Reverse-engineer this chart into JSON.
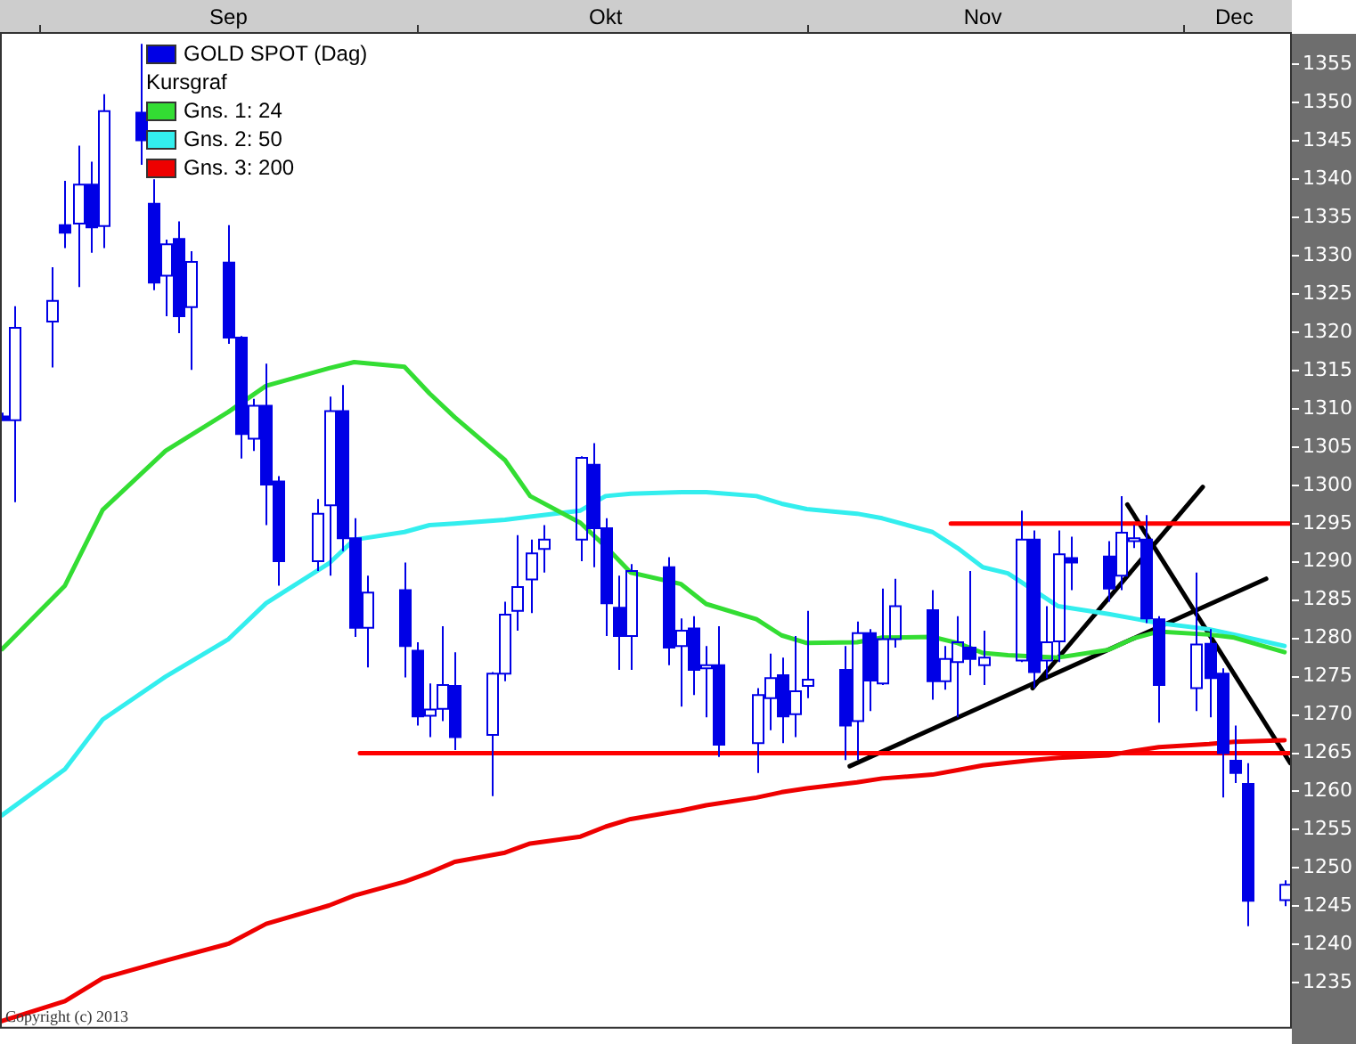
{
  "chart_data": {
    "type": "candlestick",
    "legend": "top left",
    "legend_title": "Kursgraf",
    "marker": "none",
    "x": [
      "2013-08-29",
      "2013-08-30",
      "2013-09-02",
      "2013-09-03",
      "2013-09-04",
      "2013-09-05",
      "2013-09-06",
      "2013-09-09",
      "2013-09-10",
      "2013-09-11",
      "2013-09-12",
      "2013-09-13",
      "2013-09-16",
      "2013-09-17",
      "2013-09-18",
      "2013-09-19",
      "2013-09-20",
      "2013-09-23",
      "2013-09-24",
      "2013-09-25",
      "2013-09-26",
      "2013-09-27",
      "2013-09-30",
      "2013-10-01",
      "2013-10-02",
      "2013-10-03",
      "2013-10-04",
      "2013-10-07",
      "2013-10-08",
      "2013-10-09",
      "2013-10-10",
      "2013-10-11",
      "2013-10-14",
      "2013-10-15",
      "2013-10-16",
      "2013-10-17",
      "2013-10-18",
      "2013-10-21",
      "2013-10-22",
      "2013-10-23",
      "2013-10-24",
      "2013-10-25",
      "2013-10-28",
      "2013-10-29",
      "2013-10-30",
      "2013-10-31",
      "2013-11-01",
      "2013-11-04",
      "2013-11-05",
      "2013-11-06",
      "2013-11-07",
      "2013-11-08",
      "2013-11-11",
      "2013-11-12",
      "2013-11-13",
      "2013-11-14",
      "2013-11-15",
      "2013-11-18",
      "2013-11-19",
      "2013-11-20",
      "2013-11-21",
      "2013-11-22",
      "2013-11-25",
      "2013-11-26",
      "2013-11-27",
      "2013-11-28",
      "2013-11-29",
      "2013-12-02",
      "2013-12-03",
      "2013-12-04",
      "2013-12-05",
      "2013-12-06",
      "2013-12-09"
    ],
    "xlim": [
      "2013-08-28T20:00",
      "2013-12-09T14:00"
    ],
    "xticks": [
      {
        "value": "2013-09-01",
        "label": null
      },
      {
        "value": "2013-09-16",
        "label": "Sep"
      },
      {
        "value": "2013-10-01",
        "label": null
      },
      {
        "value": "2013-10-16",
        "label": "Okt"
      },
      {
        "value": "2013-11-01",
        "label": null
      },
      {
        "value": "2013-11-15",
        "label": "Nov"
      },
      {
        "value": "2013-12-01",
        "label": null
      },
      {
        "value": "2013-12-05",
        "label": "Dec"
      }
    ],
    "ylim": [
      1229,
      1359
    ],
    "yticks": [
      1235,
      1240,
      1245,
      1250,
      1255,
      1260,
      1265,
      1270,
      1275,
      1280,
      1285,
      1290,
      1295,
      1300,
      1305,
      1310,
      1315,
      1320,
      1325,
      1330,
      1335,
      1340,
      1345,
      1350,
      1355
    ],
    "annotations": [
      "Copyright (c) 2013"
    ],
    "series": [
      {
        "name": "GOLD SPOT (Dag)",
        "color": "#0000e6",
        "ohlc": [
          [
            1309,
            1309.5,
            1308.5,
            1308.5
          ],
          [
            1308.5,
            1323.4,
            1297.8,
            1320.6
          ],
          [
            1321.4,
            1328.5,
            1315.4,
            1324.1
          ],
          [
            1334.0,
            1339.8,
            1331.0,
            1333.0
          ],
          [
            1334.2,
            1344.4,
            1325.9,
            1339.3
          ],
          [
            1339.3,
            1342.3,
            1330.4,
            1333.7
          ],
          [
            1333.9,
            1351.1,
            1331.0,
            1348.9
          ],
          [
            1348.7,
            1357.7,
            1341.9,
            1345.1
          ],
          [
            1336.8,
            1340.0,
            1325.5,
            1326.5
          ],
          [
            1327.4,
            1332.1,
            1322.1,
            1331.5
          ],
          [
            1332.2,
            1334.5,
            1319.9,
            1322.1
          ],
          [
            1323.3,
            1330.6,
            1315.1,
            1329.2
          ],
          [
            1329.1,
            1334.0,
            1318.5,
            1319.3
          ],
          [
            1319.3,
            1319.5,
            1303.5,
            1306.7
          ],
          [
            1306.1,
            1311.3,
            1304.5,
            1310.4
          ],
          [
            1310.4,
            1315.9,
            1294.8,
            1300.1
          ],
          [
            1300.5,
            1301.2,
            1286.9,
            1290.1
          ],
          [
            1290.1,
            1298.2,
            1288.8,
            1296.3
          ],
          [
            1297.4,
            1311.6,
            1288.2,
            1309.7
          ],
          [
            1309.7,
            1313.1,
            1291.4,
            1293.1
          ],
          [
            1293.1,
            1295.7,
            1280.2,
            1281.4
          ],
          [
            1281.4,
            1288.2,
            1276.2,
            1286.0
          ],
          [
            1286.3,
            1289.9,
            1274.9,
            1279.0
          ],
          [
            1278.4,
            1279.5,
            1268.6,
            1269.8
          ],
          [
            1269.9,
            1274.1,
            1267.1,
            1270.7
          ],
          [
            1270.8,
            1281.6,
            1269.2,
            1273.9
          ],
          [
            1273.8,
            1278.2,
            1265.4,
            1267.1
          ],
          [
            1267.4,
            1275.6,
            1259.4,
            1275.4
          ],
          [
            1275.4,
            1284.8,
            1274.4,
            1283.1
          ],
          [
            1283.6,
            1293.5,
            1281.0,
            1286.7
          ],
          [
            1287.7,
            1292.9,
            1283.3,
            1291.1
          ],
          [
            1291.7,
            1294.8,
            1288.6,
            1292.9
          ],
          [
            1292.9,
            1303.8,
            1290.1,
            1303.6
          ],
          [
            1302.7,
            1305.5,
            1289.3,
            1294.4
          ],
          [
            1294.4,
            1295.7,
            1280.3,
            1284.6
          ],
          [
            1284.0,
            1288.2,
            1275.9,
            1280.3
          ],
          [
            1280.3,
            1289.7,
            1275.9,
            1288.8
          ],
          [
            1289.3,
            1290.6,
            1276.5,
            1278.8
          ],
          [
            1279.0,
            1282.6,
            1271.1,
            1281.0
          ],
          [
            1281.3,
            1282.9,
            1272.6,
            1275.9
          ],
          [
            1276.1,
            1279.0,
            1269.7,
            1276.5
          ],
          [
            1276.5,
            1281.6,
            1264.5,
            1266.1
          ],
          [
            1266.3,
            1273.5,
            1262.4,
            1272.6
          ],
          [
            1272.2,
            1278.0,
            1268.0,
            1274.8
          ],
          [
            1275.2,
            1277.5,
            1266.3,
            1269.8
          ],
          [
            1270.1,
            1280.3,
            1267.1,
            1273.1
          ],
          [
            1273.8,
            1283.6,
            1272.2,
            1274.6
          ],
          [
            1275.9,
            1279.0,
            1264.1,
            1268.6
          ],
          [
            1269.2,
            1282.2,
            1264.1,
            1280.7
          ],
          [
            1280.7,
            1281.2,
            1270.5,
            1274.5
          ],
          [
            1274.1,
            1286.5,
            1273.9,
            1279.9
          ],
          [
            1279.9,
            1287.8,
            1278.8,
            1284.2
          ],
          [
            1283.7,
            1286.3,
            1272.0,
            1274.4
          ],
          [
            1274.4,
            1279.0,
            1273.3,
            1277.3
          ],
          [
            1276.9,
            1282.9,
            1269.7,
            1279.5
          ],
          [
            1278.8,
            1288.8,
            1275.2,
            1277.3
          ],
          [
            1276.5,
            1281.0,
            1273.9,
            1277.5
          ],
          [
            1277.1,
            1296.7,
            1276.9,
            1292.9
          ],
          [
            1292.9,
            1294.1,
            1273.5,
            1275.6
          ],
          [
            1277.1,
            1284.2,
            1274.8,
            1279.5
          ],
          [
            1279.6,
            1294.1,
            1276.9,
            1291.0
          ],
          [
            1290.5,
            1293.3,
            1286.3,
            1289.9
          ],
          [
            1290.7,
            1292.7,
            1284.8,
            1286.5
          ],
          [
            1288.2,
            1298.6,
            1286.3,
            1293.8
          ],
          [
            1292.7,
            1294.8,
            1291.8,
            1293.1
          ],
          [
            1292.9,
            1296.1,
            1282.0,
            1282.6
          ],
          [
            1282.5,
            1282.9,
            1269.0,
            1273.9
          ],
          [
            1273.5,
            1288.6,
            1270.5,
            1279.2
          ],
          [
            1279.3,
            1281.2,
            1269.7,
            1274.8
          ],
          [
            1275.4,
            1276.1,
            1259.2,
            1265.0
          ],
          [
            1264.0,
            1268.6,
            1261.1,
            1262.4
          ],
          [
            1261.0,
            1263.7,
            1242.4,
            1245.7
          ],
          [
            1245.8,
            1248.4,
            1245.0,
            1247.8
          ]
        ]
      },
      {
        "type": "line",
        "name": "Gns. 1: 24",
        "color": "#33dd33",
        "x": [
          "2013-08-29",
          "2013-09-03",
          "2013-09-06",
          "2013-09-11",
          "2013-09-16",
          "2013-09-19",
          "2013-09-24",
          "2013-09-26",
          "2013-09-30",
          "2013-10-02",
          "2013-10-04",
          "2013-10-08",
          "2013-10-10",
          "2013-10-14",
          "2013-10-16",
          "2013-10-18",
          "2013-10-22",
          "2013-10-24",
          "2013-10-28",
          "2013-10-30",
          "2013-11-01",
          "2013-11-05",
          "2013-11-07",
          "2013-11-11",
          "2013-11-13",
          "2013-11-15",
          "2013-11-17",
          "2013-11-21",
          "2013-11-25",
          "2013-11-27",
          "2013-11-29",
          "2013-12-03",
          "2013-12-05",
          "2013-12-09"
        ],
        "values": [
          1278.6,
          1286.9,
          1296.8,
          1304.5,
          1309.6,
          1313.0,
          1315.3,
          1316.1,
          1315.5,
          1312.0,
          1308.9,
          1303.3,
          1298.6,
          1295.1,
          1292.0,
          1288.6,
          1287.1,
          1284.5,
          1282.5,
          1280.4,
          1279.4,
          1279.5,
          1280.1,
          1280.2,
          1279.4,
          1278.1,
          1277.8,
          1277.5,
          1278.5,
          1280.0,
          1280.9,
          1280.5,
          1280.1,
          1278.2
        ]
      },
      {
        "type": "line",
        "name": "Gns. 2: 50",
        "color": "#33eeee",
        "x": [
          "2013-08-29",
          "2013-09-03",
          "2013-09-06",
          "2013-09-11",
          "2013-09-16",
          "2013-09-19",
          "2013-09-24",
          "2013-09-26",
          "2013-09-30",
          "2013-10-02",
          "2013-10-04",
          "2013-10-08",
          "2013-10-10",
          "2013-10-14",
          "2013-10-16",
          "2013-10-18",
          "2013-10-22",
          "2013-10-24",
          "2013-10-28",
          "2013-10-30",
          "2013-11-01",
          "2013-11-05",
          "2013-11-07",
          "2013-11-11",
          "2013-11-13",
          "2013-11-15",
          "2013-11-17",
          "2013-11-21",
          "2013-11-25",
          "2013-11-27",
          "2013-11-29",
          "2013-12-03",
          "2013-12-05",
          "2013-12-09"
        ],
        "values": [
          1256.9,
          1262.9,
          1269.4,
          1275.0,
          1279.9,
          1284.6,
          1289.8,
          1292.9,
          1293.9,
          1294.8,
          1295.0,
          1295.5,
          1295.9,
          1296.7,
          1298.6,
          1298.9,
          1299.1,
          1299.1,
          1298.6,
          1297.6,
          1296.9,
          1296.3,
          1295.7,
          1293.9,
          1291.8,
          1289.3,
          1288.5,
          1284.2,
          1283.2,
          1282.6,
          1282.0,
          1281.2,
          1280.5,
          1279.0
        ]
      },
      {
        "type": "line",
        "name": "Gns. 3: 200",
        "color": "#ee0000",
        "x": [
          "2013-08-29",
          "2013-09-03",
          "2013-09-06",
          "2013-09-11",
          "2013-09-16",
          "2013-09-19",
          "2013-09-24",
          "2013-09-26",
          "2013-09-30",
          "2013-10-02",
          "2013-10-04",
          "2013-10-08",
          "2013-10-10",
          "2013-10-14",
          "2013-10-16",
          "2013-10-18",
          "2013-10-22",
          "2013-10-24",
          "2013-10-28",
          "2013-10-30",
          "2013-11-01",
          "2013-11-05",
          "2013-11-07",
          "2013-11-11",
          "2013-11-13",
          "2013-11-15",
          "2013-11-19",
          "2013-11-21",
          "2013-11-25",
          "2013-11-27",
          "2013-11-29",
          "2013-12-03",
          "2013-12-05",
          "2013-12-09"
        ],
        "values": [
          1230.0,
          1232.6,
          1235.6,
          1237.9,
          1240.1,
          1242.7,
          1245.1,
          1246.4,
          1248.2,
          1249.4,
          1250.8,
          1252.0,
          1253.2,
          1254.1,
          1255.4,
          1256.4,
          1257.5,
          1258.2,
          1259.2,
          1259.9,
          1260.4,
          1261.2,
          1261.7,
          1262.2,
          1262.8,
          1263.4,
          1264.1,
          1264.4,
          1264.7,
          1265.3,
          1265.8,
          1266.2,
          1266.5,
          1266.7
        ]
      },
      {
        "type": "line",
        "color": "#ff0000",
        "x": [
          "2013-11-12T11:00",
          "2013-12-09T11:00"
        ],
        "values": [
          1295,
          1295
        ]
      },
      {
        "type": "line",
        "color": "#ff0000",
        "x": [
          "2013-09-26T11:00",
          "2013-12-09T11:00"
        ],
        "values": [
          1265,
          1265
        ]
      },
      {
        "type": "line",
        "color": "#000000",
        "x": [
          "2013-11-04T10:00",
          "2013-12-07T13:00"
        ],
        "values": [
          1263.3,
          1287.8
        ]
      },
      {
        "type": "line",
        "color": "#000000",
        "x": [
          "2013-11-18T23:00",
          "2013-12-02T12:00"
        ],
        "values": [
          1273.5,
          1299.8
        ]
      },
      {
        "type": "line",
        "color": "#000000",
        "x": [
          "2013-11-26T12:00",
          "2013-12-09T11:00"
        ],
        "values": [
          1297.5,
          1263.7
        ]
      }
    ]
  }
}
